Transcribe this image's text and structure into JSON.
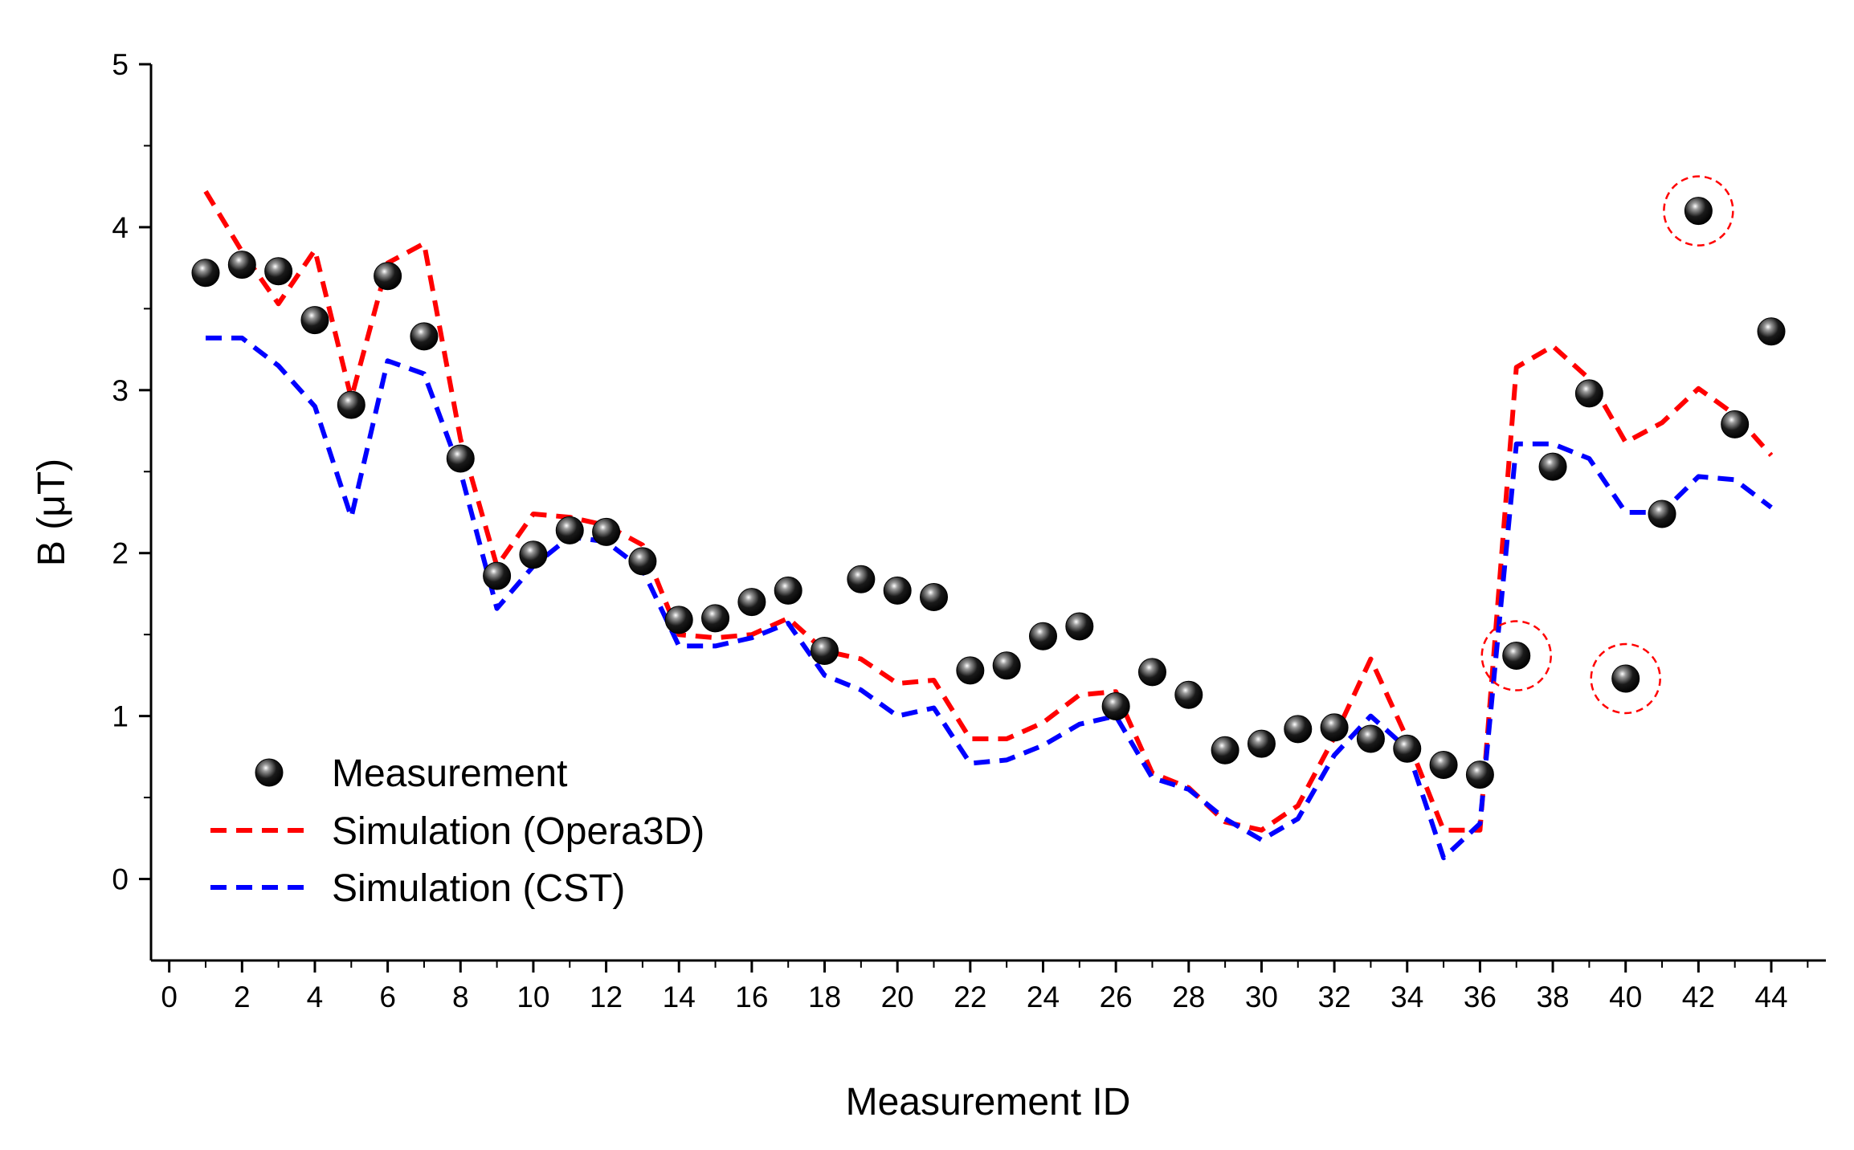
{
  "chart_data": {
    "type": "scatter",
    "title": "",
    "xlabel": "Measurement ID",
    "ylabel": "B (μT)",
    "xlim": [
      -0.5,
      45.5
    ],
    "ylim": [
      -0.5,
      5
    ],
    "xticks": [
      "0",
      "2",
      "4",
      "6",
      "8",
      "10",
      "12",
      "14",
      "16",
      "18",
      "20",
      "22",
      "24",
      "26",
      "28",
      "30",
      "32",
      "34",
      "36",
      "38",
      "40",
      "42",
      "44"
    ],
    "yticks": [
      "0",
      "1",
      "2",
      "3",
      "4",
      "5"
    ],
    "legend_position": "bottom-left",
    "series": [
      {
        "name": "Measurement",
        "kind": "scatter",
        "color": "#000000",
        "x": [
          1,
          2,
          3,
          4,
          5,
          6,
          7,
          8,
          9,
          10,
          11,
          12,
          13,
          14,
          15,
          16,
          17,
          18,
          19,
          20,
          21,
          22,
          23,
          24,
          25,
          26,
          27,
          28,
          29,
          30,
          31,
          32,
          33,
          34,
          35,
          36,
          37,
          38,
          39,
          40,
          41,
          42,
          43,
          44
        ],
        "y": [
          3.72,
          3.77,
          3.73,
          3.43,
          2.91,
          3.7,
          3.33,
          2.58,
          1.86,
          1.99,
          2.14,
          2.13,
          1.95,
          1.59,
          1.6,
          1.7,
          1.77,
          1.4,
          1.84,
          1.77,
          1.73,
          1.28,
          1.31,
          1.49,
          1.55,
          1.06,
          1.27,
          1.13,
          0.79,
          0.83,
          0.92,
          0.93,
          0.86,
          0.8,
          0.7,
          0.64,
          1.37,
          2.53,
          2.98,
          1.23,
          2.24,
          4.1,
          2.79,
          3.36
        ]
      },
      {
        "name": "Simulation (Opera3D)",
        "kind": "line",
        "dash": "dashed",
        "color": "#ff0000",
        "x": [
          1,
          2,
          3,
          4,
          5,
          6,
          7,
          8,
          9,
          10,
          11,
          12,
          13,
          14,
          15,
          16,
          17,
          18,
          19,
          20,
          21,
          22,
          23,
          24,
          25,
          26,
          27,
          28,
          29,
          30,
          31,
          32,
          33,
          34,
          35,
          36,
          37,
          38,
          39,
          40,
          41,
          42,
          43,
          44
        ],
        "y": [
          4.22,
          3.85,
          3.53,
          3.86,
          2.95,
          3.78,
          3.9,
          2.7,
          1.92,
          2.24,
          2.22,
          2.17,
          2.05,
          1.5,
          1.48,
          1.5,
          1.6,
          1.4,
          1.35,
          1.2,
          1.22,
          0.86,
          0.86,
          0.96,
          1.13,
          1.15,
          0.65,
          0.56,
          0.35,
          0.3,
          0.45,
          0.87,
          1.35,
          0.86,
          0.3,
          0.3,
          3.14,
          3.27,
          3.07,
          2.68,
          2.8,
          3.01,
          2.85,
          2.6
        ]
      },
      {
        "name": "Simulation (CST)",
        "kind": "line",
        "dash": "dashed",
        "color": "#0000ff",
        "x": [
          1,
          2,
          3,
          4,
          5,
          6,
          7,
          8,
          9,
          10,
          11,
          12,
          13,
          14,
          15,
          16,
          17,
          18,
          19,
          20,
          21,
          22,
          23,
          24,
          25,
          26,
          27,
          28,
          29,
          30,
          31,
          32,
          33,
          34,
          35,
          36,
          37,
          38,
          39,
          40,
          41,
          42,
          43,
          44
        ],
        "y": [
          3.32,
          3.32,
          3.15,
          2.9,
          2.22,
          3.18,
          3.1,
          2.5,
          1.66,
          1.92,
          2.1,
          2.07,
          1.9,
          1.43,
          1.43,
          1.48,
          1.57,
          1.25,
          1.16,
          1.0,
          1.05,
          0.71,
          0.73,
          0.82,
          0.95,
          1.0,
          0.62,
          0.55,
          0.37,
          0.24,
          0.37,
          0.76,
          1.0,
          0.8,
          0.13,
          0.34,
          2.67,
          2.67,
          2.58,
          2.25,
          2.25,
          2.47,
          2.45,
          2.28
        ]
      }
    ],
    "annotations": [
      {
        "type": "dashed-circle",
        "target_x": 37,
        "target_y": 1.37,
        "color": "#ff0000"
      },
      {
        "type": "dashed-circle",
        "target_x": 40,
        "target_y": 1.23,
        "color": "#ff0000"
      },
      {
        "type": "dashed-circle",
        "target_x": 42,
        "target_y": 4.1,
        "color": "#ff0000"
      }
    ]
  }
}
